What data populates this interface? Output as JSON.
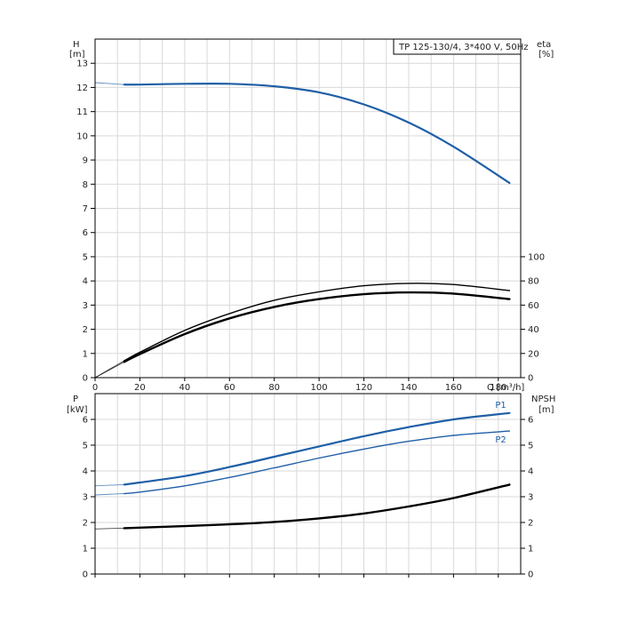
{
  "chart_data": [
    {
      "type": "line",
      "title": "TP 125-130/4, 3*400 V, 50Hz",
      "xlabel": "Q [m³/h]",
      "xlim": [
        0,
        190
      ],
      "xticks": [
        0,
        20,
        40,
        60,
        80,
        100,
        120,
        140,
        160,
        180
      ],
      "y_left": {
        "label": "H",
        "unit": "[m]",
        "lim": [
          0,
          14
        ],
        "ticks": [
          0,
          1,
          2,
          3,
          4,
          5,
          6,
          7,
          8,
          9,
          10,
          11,
          12,
          13
        ]
      },
      "y_right": {
        "label": "eta",
        "unit": "[%]",
        "lim": [
          0,
          280
        ],
        "ticks": [
          0,
          20,
          40,
          60,
          80,
          100
        ]
      },
      "grid": true,
      "series": [
        {
          "name": "",
          "axis": "left",
          "color": "#1f5fa6",
          "x": [
            0,
            13,
            20,
            40,
            60,
            80,
            100,
            120,
            140,
            160,
            185
          ],
          "y": [
            12.2,
            12.12,
            12.12,
            12.15,
            12.15,
            12.05,
            11.8,
            11.3,
            10.55,
            9.55,
            8.05
          ]
        },
        {
          "name": "",
          "axis": "right",
          "color": "#000000",
          "x": [
            0,
            13,
            20,
            40,
            60,
            80,
            100,
            120,
            140,
            160,
            185
          ],
          "y": [
            0,
            14,
            21,
            39,
            53,
            64,
            71,
            76,
            78,
            77,
            72
          ]
        },
        {
          "name": "",
          "axis": "right",
          "color": "#000000",
          "x": [
            0,
            13,
            20,
            40,
            60,
            80,
            100,
            120,
            140,
            160,
            185
          ],
          "y": [
            0,
            13,
            19.5,
            36,
            49,
            58.5,
            65,
            69,
            70.5,
            69.5,
            65
          ]
        }
      ]
    },
    {
      "type": "line",
      "xlim": [
        0,
        190
      ],
      "y_left": {
        "label": "P",
        "unit": "[kW]",
        "lim": [
          0,
          7
        ],
        "ticks": [
          0,
          1,
          2,
          3,
          4,
          5,
          6
        ]
      },
      "y_right": {
        "label": "NPSH",
        "unit": "[m]",
        "lim": [
          0,
          7
        ],
        "ticks": [
          0,
          1,
          2,
          3,
          4,
          5,
          6
        ]
      },
      "grid": true,
      "series": [
        {
          "name": "P1",
          "axis": "left",
          "color": "#1f5fa6",
          "x": [
            0,
            13,
            20,
            40,
            60,
            80,
            100,
            120,
            140,
            160,
            185
          ],
          "y": [
            3.42,
            3.47,
            3.55,
            3.8,
            4.15,
            4.55,
            4.95,
            5.35,
            5.7,
            6.0,
            6.25
          ]
        },
        {
          "name": "P2",
          "axis": "left",
          "color": "#1f5fa6",
          "x": [
            0,
            13,
            20,
            40,
            60,
            80,
            100,
            120,
            140,
            160,
            185
          ],
          "y": [
            3.07,
            3.12,
            3.18,
            3.42,
            3.75,
            4.12,
            4.5,
            4.85,
            5.15,
            5.38,
            5.55
          ]
        },
        {
          "name": "",
          "axis": "right",
          "color": "#000000",
          "x": [
            0,
            13,
            20,
            40,
            60,
            80,
            100,
            120,
            140,
            160,
            185
          ],
          "y": [
            1.75,
            1.78,
            1.8,
            1.86,
            1.93,
            2.02,
            2.16,
            2.35,
            2.62,
            2.95,
            3.47
          ]
        }
      ]
    }
  ]
}
